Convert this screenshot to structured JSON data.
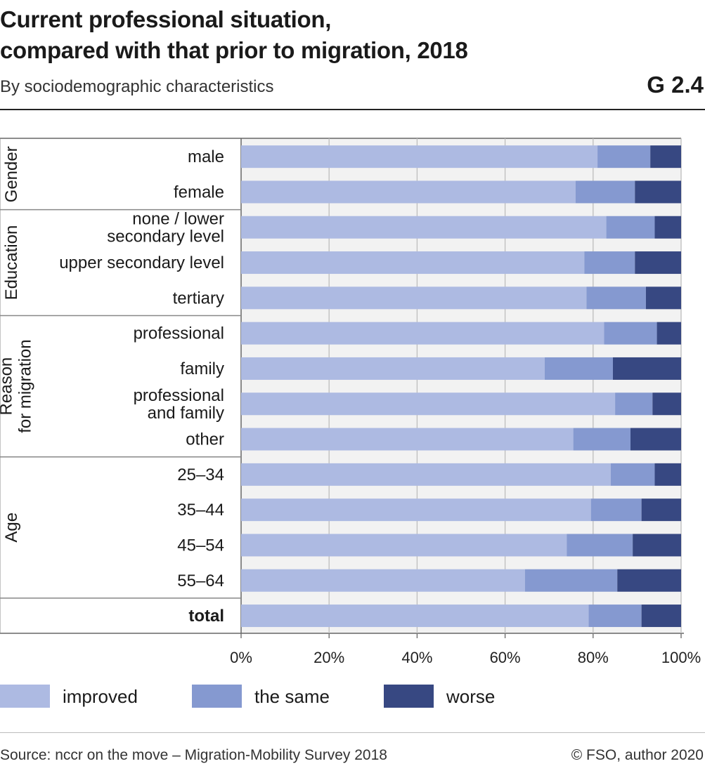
{
  "title_lines": [
    "Current professional situation,",
    "compared with that prior to migration, 2018"
  ],
  "subtitle": "By sociodemographic characteristics",
  "figure_id": "G 2.4",
  "source": "Source: nccr on the move – Migration-Mobility Survey 2018",
  "credit": "© FSO, author 2020",
  "colors": {
    "improved": "#adbae2",
    "the_same": "#8599d0",
    "worse": "#374882"
  },
  "chart_data": {
    "type": "bar",
    "orientation": "horizontal",
    "stacked": true,
    "percent_stacked": true,
    "groups": [
      {
        "label_lines": [
          "Gender"
        ],
        "categories": [
          "male",
          "female"
        ]
      },
      {
        "label_lines": [
          "Education"
        ],
        "categories": [
          "none / lower secondary level",
          "upper secondary level",
          "tertiary"
        ]
      },
      {
        "label_lines": [
          "Reason",
          "for migration"
        ],
        "categories": [
          "professional",
          "family",
          "professional and family",
          "other"
        ]
      },
      {
        "label_lines": [
          "Age"
        ],
        "categories": [
          "25–34",
          "35–44",
          "45–54",
          "55–64"
        ]
      },
      {
        "label_lines": [],
        "categories": [
          "total"
        ]
      }
    ],
    "categories": [
      {
        "lines": [
          "male"
        ],
        "bold": false
      },
      {
        "lines": [
          "female"
        ],
        "bold": false
      },
      {
        "lines": [
          "none / lower",
          "secondary level"
        ],
        "bold": false
      },
      {
        "lines": [
          "upper secondary level"
        ],
        "bold": false
      },
      {
        "lines": [
          "tertiary"
        ],
        "bold": false
      },
      {
        "lines": [
          "professional"
        ],
        "bold": false
      },
      {
        "lines": [
          "family"
        ],
        "bold": false
      },
      {
        "lines": [
          "professional",
          "and family"
        ],
        "bold": false
      },
      {
        "lines": [
          "other"
        ],
        "bold": false
      },
      {
        "lines": [
          "25–34"
        ],
        "bold": false
      },
      {
        "lines": [
          "35–44"
        ],
        "bold": false
      },
      {
        "lines": [
          "45–54"
        ],
        "bold": false
      },
      {
        "lines": [
          "55–64"
        ],
        "bold": false
      },
      {
        "lines": [
          "total"
        ],
        "bold": true
      }
    ],
    "series": [
      {
        "name": "improved",
        "color": "#adbae2",
        "values": [
          81,
          76,
          83,
          78,
          78.5,
          82.5,
          69,
          85,
          75.5,
          84,
          79.5,
          74,
          64.5,
          79
        ]
      },
      {
        "name": "the same",
        "color": "#8599d0",
        "values": [
          12,
          13.5,
          11,
          11.5,
          13.5,
          12,
          15.5,
          8.5,
          13,
          10,
          11.5,
          15,
          21,
          12
        ]
      },
      {
        "name": "worse",
        "color": "#374882",
        "values": [
          7,
          10.5,
          6,
          10.5,
          8,
          5.5,
          15.5,
          6.5,
          11.5,
          6,
          9,
          11,
          14.5,
          9
        ]
      }
    ],
    "xlim": [
      0,
      100
    ],
    "x_ticks": [
      "0%",
      "20%",
      "40%",
      "60%",
      "80%",
      "100%"
    ],
    "grid": true,
    "legend_position": "bottom-left"
  }
}
